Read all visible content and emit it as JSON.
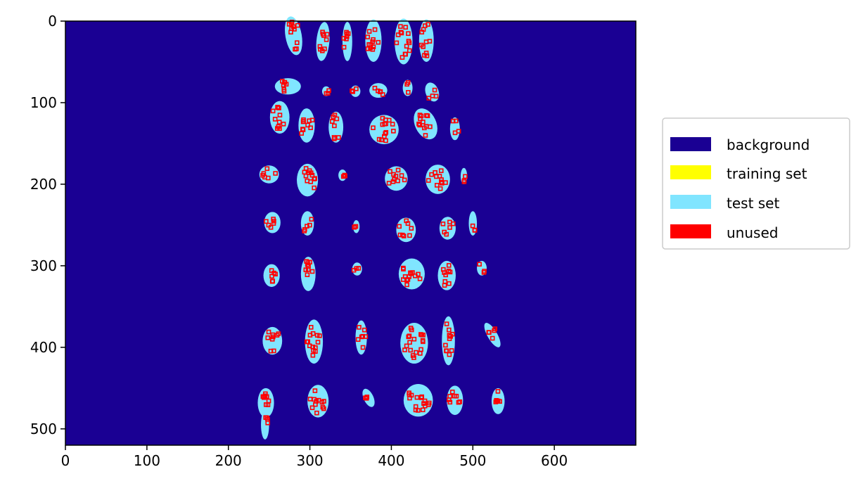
{
  "chart_data": {
    "type": "heatmap",
    "title": "",
    "xlabel": "",
    "ylabel": "",
    "xlim": [
      0,
      700
    ],
    "ylim": [
      520,
      0
    ],
    "x_ticks": [
      "0",
      "100",
      "200",
      "300",
      "400",
      "500",
      "600"
    ],
    "y_ticks": [
      "0",
      "100",
      "200",
      "300",
      "400",
      "500"
    ],
    "grid": false,
    "legend_position": "right",
    "legend": [
      {
        "label": "background",
        "color": "#1a0093"
      },
      {
        "label": "training set",
        "color": "#ffff00"
      },
      {
        "label": "test set",
        "color": "#80e5ff"
      },
      {
        "label": "unused",
        "color": "#ff0000"
      }
    ],
    "class_values": [
      "background",
      "training set",
      "test set",
      "unused"
    ]
  }
}
